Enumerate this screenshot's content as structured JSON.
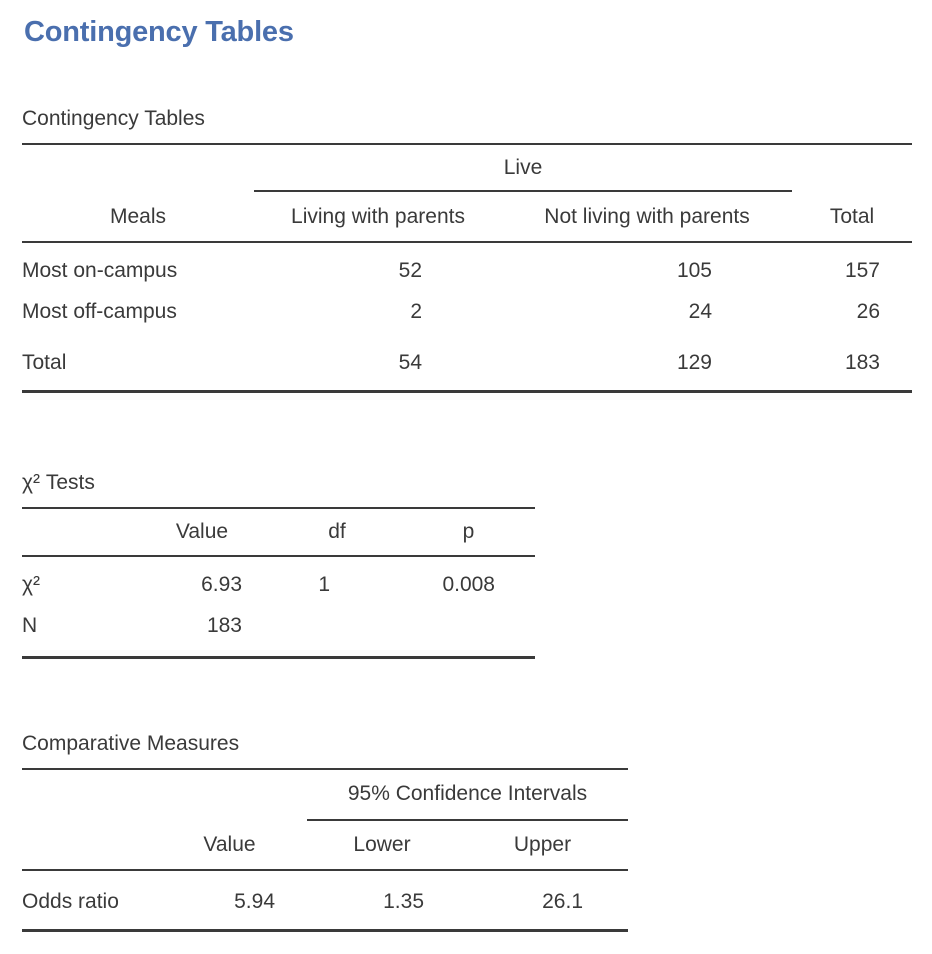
{
  "title": "Contingency Tables",
  "colors": {
    "title_blue": "#4a6fae",
    "text": "#3a3a3a",
    "line": "#3a3a3a",
    "background": "#ffffff"
  },
  "sections": {
    "contingency": {
      "label": "Contingency Tables",
      "table": {
        "group_header": "Live",
        "row_header": "Meals",
        "col_living": "Living with parents",
        "col_not_living": "Not living with parents",
        "col_total": "Total",
        "rows": [
          {
            "label": "Most on-campus",
            "living": "52",
            "not_living": "105",
            "total": "157"
          },
          {
            "label": "Most off-campus",
            "living": "2",
            "not_living": "24",
            "total": "26"
          }
        ],
        "total_row": {
          "label": "Total",
          "living": "54",
          "not_living": "129",
          "total": "183"
        }
      }
    },
    "chi_squared": {
      "label": "χ² Tests",
      "headers": {
        "value": "Value",
        "df": "df",
        "p": "p"
      },
      "rows": [
        {
          "label": "χ²",
          "value": "6.93",
          "df": "1",
          "p": "0.008"
        },
        {
          "label": "N",
          "value": "183",
          "df": "",
          "p": ""
        }
      ]
    },
    "comparative": {
      "label": "Comparative Measures",
      "group_header": "95% Confidence Intervals",
      "headers": {
        "value": "Value",
        "lower": "Lower",
        "upper": "Upper"
      },
      "rows": [
        {
          "label": "Odds ratio",
          "value": "5.94",
          "lower": "1.35",
          "upper": "26.1"
        }
      ]
    }
  }
}
